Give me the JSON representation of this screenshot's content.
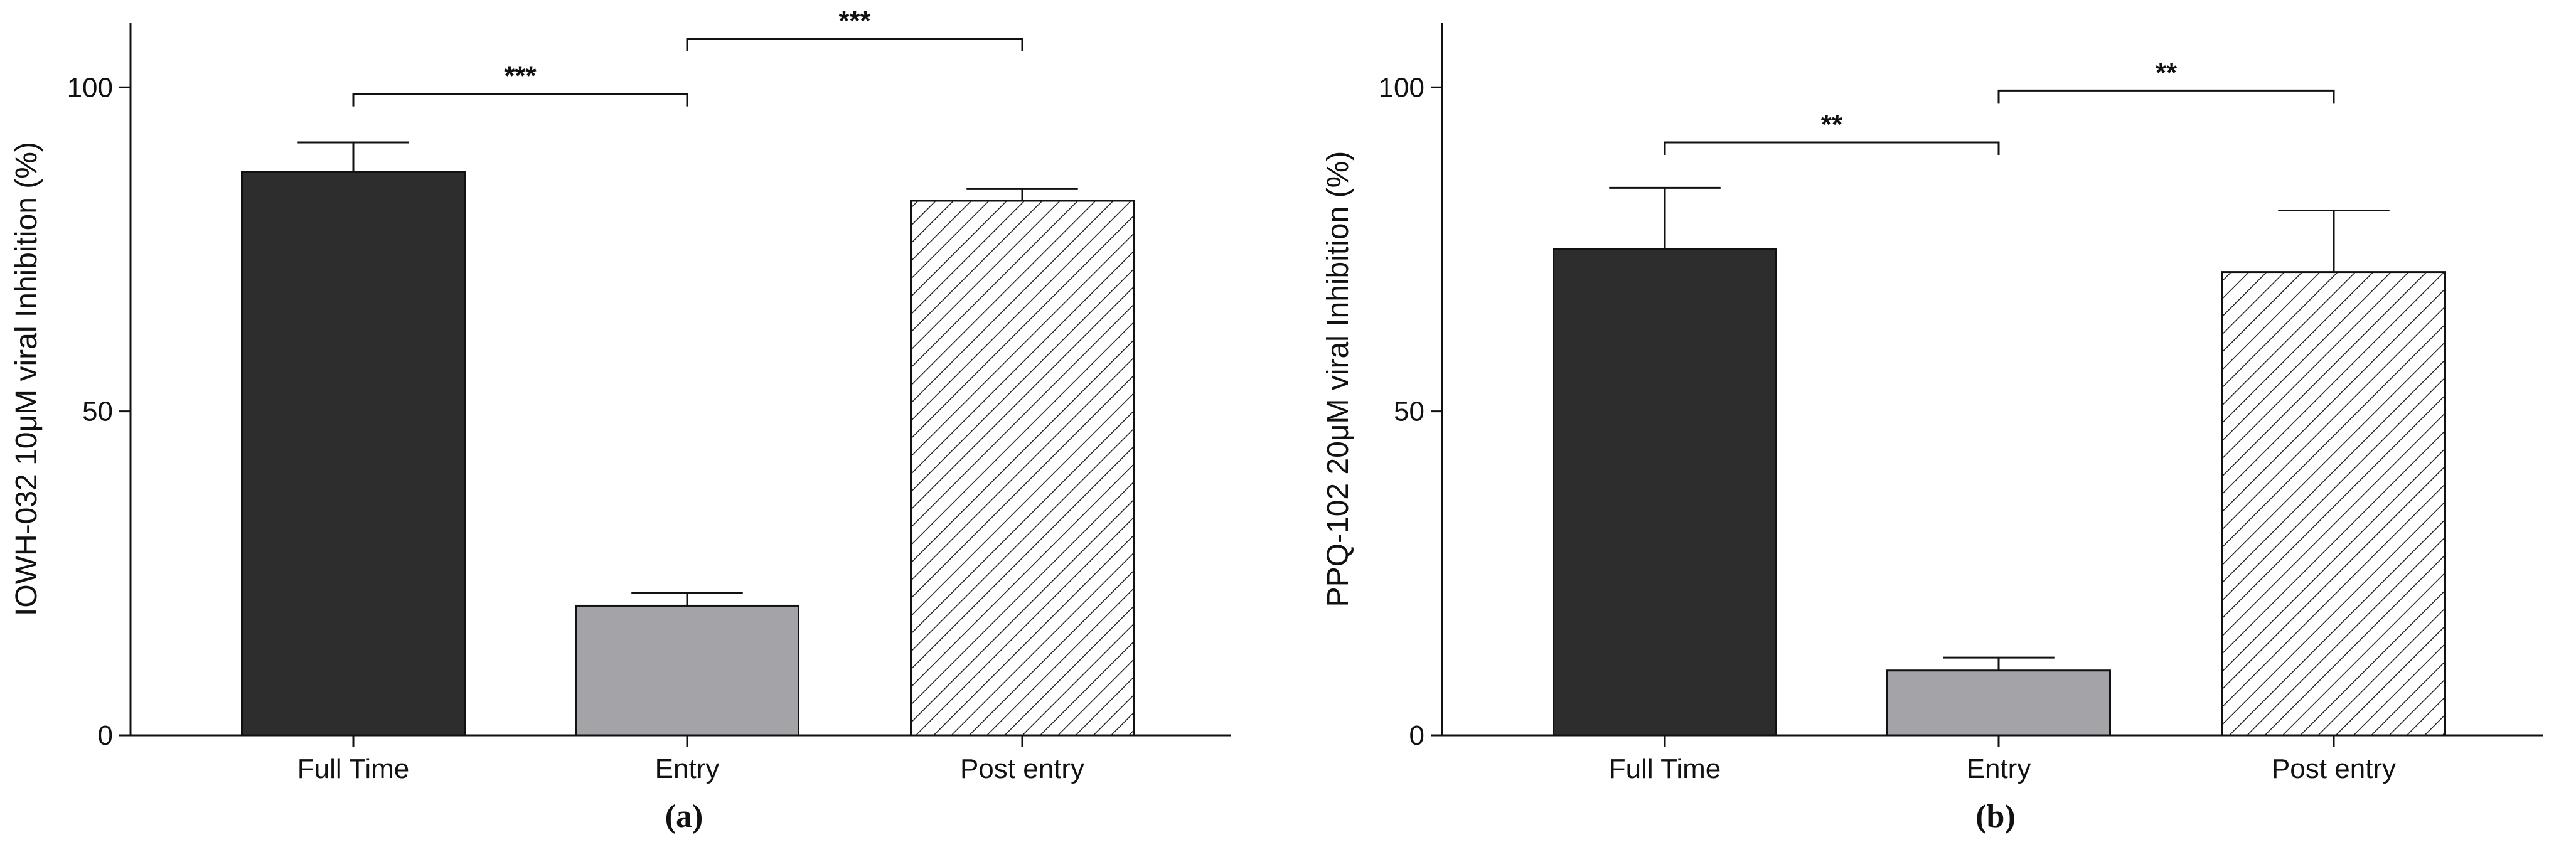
{
  "colors": {
    "dark_bar": "#2d2d2d",
    "gray_bar": "#a3a3a8",
    "hatch": "#222222",
    "axis": "#111111"
  },
  "chart_data": [
    {
      "type": "bar",
      "panel": "(a)",
      "categories": [
        "Full Time",
        "Entry",
        "Post entry"
      ],
      "values": [
        87,
        20,
        82.5
      ],
      "errors": [
        4.5,
        2,
        1.8
      ],
      "fills": [
        "dark",
        "gray",
        "hatched"
      ],
      "ylabel": "IOWH-032 10μM viral Inhibition (%)",
      "ylim": [
        0,
        110
      ],
      "yticks": [
        0,
        50,
        100
      ],
      "significance": [
        {
          "from": 0,
          "to": 1,
          "label": "***",
          "y": 99
        },
        {
          "from": 1,
          "to": 2,
          "label": "***",
          "y": 107.5
        }
      ]
    },
    {
      "type": "bar",
      "panel": "(b)",
      "categories": [
        "Full Time",
        "Entry",
        "Post entry"
      ],
      "values": [
        75,
        10,
        71.5
      ],
      "errors": [
        9.5,
        2,
        9.5
      ],
      "fills": [
        "dark",
        "gray",
        "hatched"
      ],
      "ylabel": "PPQ-102 20μM viral Inhibition (%)",
      "ylim": [
        0,
        110
      ],
      "yticks": [
        0,
        50,
        100
      ],
      "significance": [
        {
          "from": 0,
          "to": 1,
          "label": "**",
          "y": 91.5
        },
        {
          "from": 1,
          "to": 2,
          "label": "**",
          "y": 99.5
        }
      ]
    }
  ]
}
